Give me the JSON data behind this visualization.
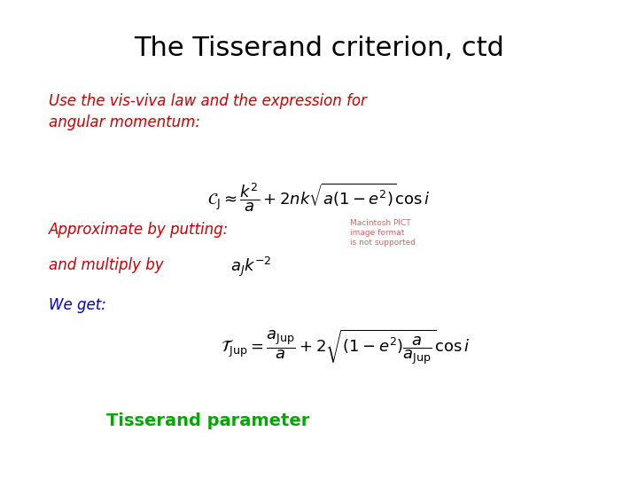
{
  "title": "The Tisserand criterion, ctd",
  "title_fontsize": 22,
  "title_color": "#000000",
  "bg_color": "#ffffff",
  "text1": "Use the vis-viva law and the expression for\nangular momentum:",
  "text1_color": "#cc0000",
  "text1_fontsize": 12,
  "eq1": "$\\mathcal{C}_\\mathrm{J} \\approx \\dfrac{k^2}{a} + 2nk\\sqrt{a(1-e^2)}\\cos i$",
  "eq1_color": "#000000",
  "eq1_fontsize": 13,
  "text2": "Approximate by putting:",
  "text2_color": "#cc0000",
  "text2_fontsize": 12,
  "pict_text": "Macintosh PICT\nimage format\nis not supported",
  "pict_color": "#cc6666",
  "pict_fontsize": 6.5,
  "text3": "and multiply by",
  "text3_color": "#cc0000",
  "text3_fontsize": 12,
  "multiply_expr": "$a_J k^{-2}$",
  "multiply_fontsize": 13,
  "multiply_color": "#000000",
  "text4": "We get:",
  "text4_color": "#0000cc",
  "text4_fontsize": 12,
  "eq2": "$\\mathcal{T}_\\mathrm{Jup} = \\dfrac{a_\\mathrm{Jup}}{a} + 2\\sqrt{(1-e^2)\\dfrac{a}{a_\\mathrm{Jup}}}\\cos i$",
  "eq2_color": "#000000",
  "eq2_fontsize": 13,
  "text5": "Tisserand parameter",
  "text5_color": "#00aa00",
  "text5_fontsize": 14
}
